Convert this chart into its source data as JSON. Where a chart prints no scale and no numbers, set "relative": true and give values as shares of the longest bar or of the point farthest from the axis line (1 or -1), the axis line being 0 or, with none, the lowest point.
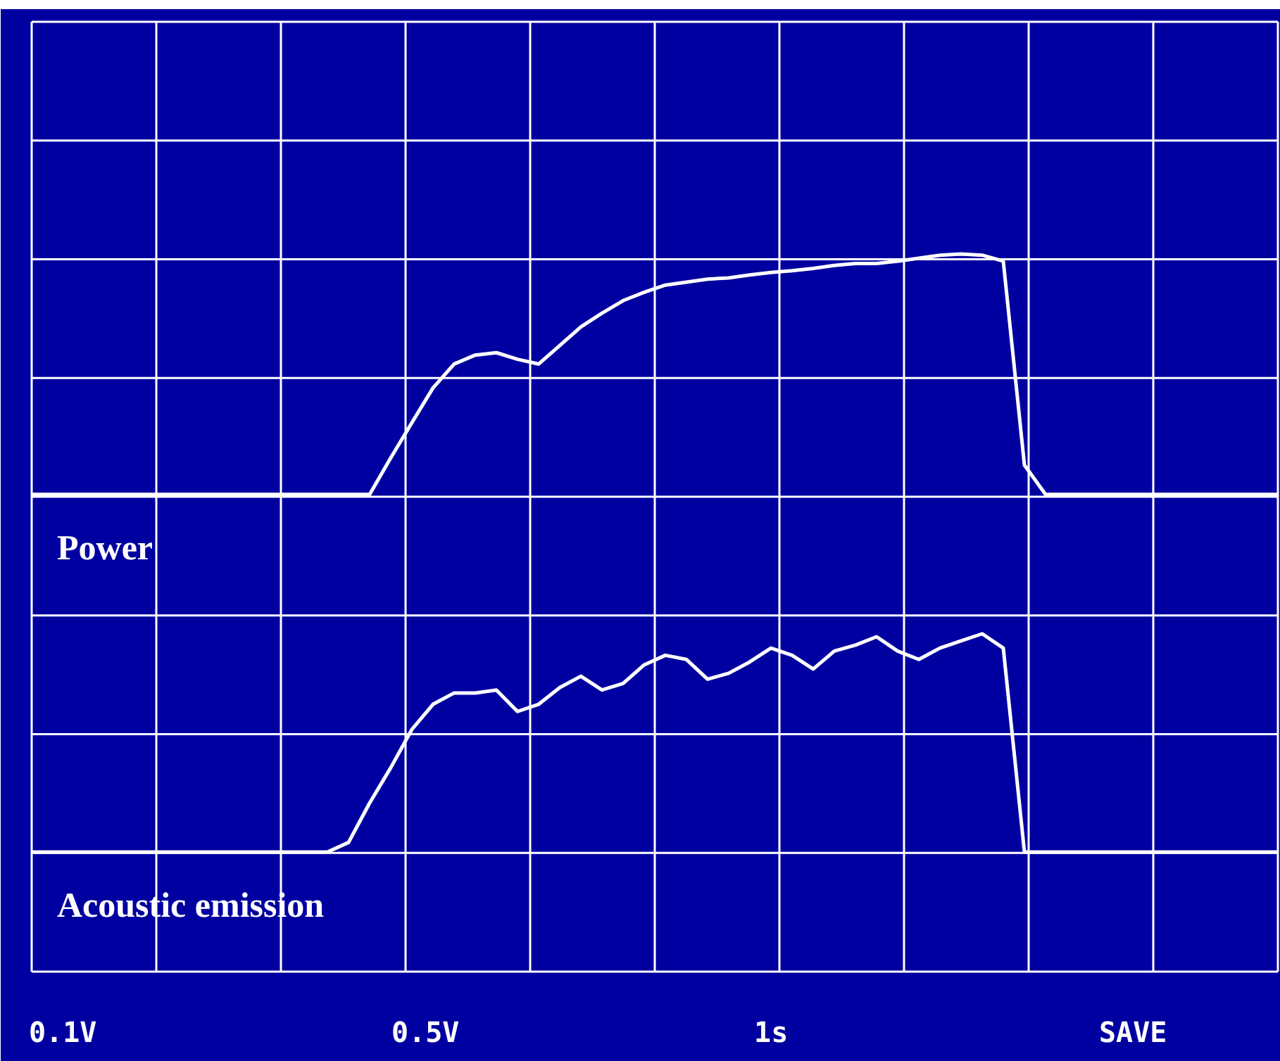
{
  "chart_data": {
    "type": "line",
    "relative": true,
    "grid": true,
    "line_style": "solid",
    "marker": "none",
    "categories": [
      null,
      null,
      null,
      null,
      null,
      null,
      null,
      null,
      null,
      null,
      null,
      null,
      null,
      null,
      null,
      null,
      null,
      null,
      null,
      null,
      null,
      null,
      null,
      null,
      null,
      null,
      null,
      null,
      null,
      null,
      null,
      null,
      null,
      null,
      null,
      null,
      null,
      null,
      null,
      null,
      null,
      null,
      null,
      null,
      null,
      null,
      null,
      null,
      null,
      null,
      null,
      null,
      null,
      null,
      null,
      null,
      null,
      null,
      null,
      null
    ],
    "series": [
      {
        "name": "Power",
        "color": "#ffffff",
        "values": [
          0.598,
          0.598,
          0.598,
          0.598,
          0.598,
          0.598,
          0.598,
          0.598,
          0.598,
          0.598,
          0.598,
          0.598,
          0.598,
          0.598,
          0.598,
          0.598,
          0.598,
          0.659,
          0.718,
          0.776,
          0.816,
          0.831,
          0.835,
          0.824,
          0.816,
          0.847,
          0.878,
          0.901,
          0.922,
          0.936,
          0.948,
          0.953,
          0.958,
          0.96,
          0.965,
          0.969,
          0.972,
          0.976,
          0.981,
          0.984,
          0.984,
          0.988,
          0.993,
          0.998,
          1,
          0.998,
          0.988,
          0.647,
          0.598,
          0.598,
          0.598,
          0.598,
          0.598,
          0.598,
          0.598,
          0.598,
          0.598,
          0.598,
          0.598,
          0.598
        ]
      },
      {
        "name": "Acoustic emission",
        "color": "#ffffff",
        "values": [
          0,
          0,
          0,
          0,
          0,
          0,
          0,
          0,
          0,
          0,
          0,
          0,
          0,
          0,
          0,
          0.016,
          0.082,
          0.141,
          0.205,
          0.247,
          0.266,
          0.266,
          0.271,
          0.235,
          0.247,
          0.275,
          0.294,
          0.271,
          0.282,
          0.313,
          0.329,
          0.322,
          0.289,
          0.299,
          0.318,
          0.341,
          0.329,
          0.306,
          0.336,
          0.346,
          0.36,
          0.336,
          0.322,
          0.341,
          0.353,
          0.365,
          0.341,
          0,
          0,
          0,
          0,
          0,
          0,
          0,
          0,
          0,
          0,
          0,
          0,
          0
        ]
      }
    ],
    "annotations": [
      "0.1V",
      "0.5V",
      "1s",
      "SAVE"
    ]
  }
}
